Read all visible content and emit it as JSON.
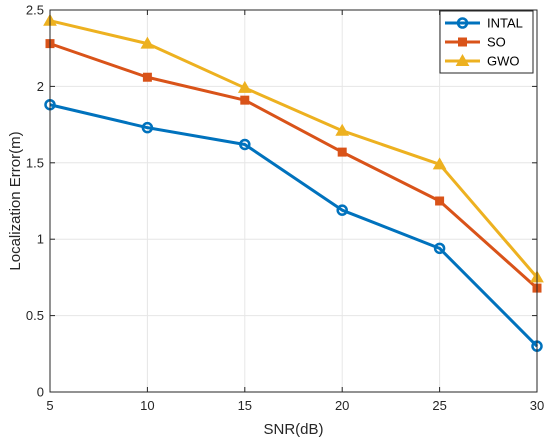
{
  "chart_data": {
    "type": "line",
    "x": [
      5,
      10,
      15,
      20,
      25,
      30
    ],
    "series": [
      {
        "name": "INTAL",
        "values": [
          1.88,
          1.73,
          1.62,
          1.19,
          0.94,
          0.3
        ],
        "color": "#0072BD",
        "marker": "circle"
      },
      {
        "name": "SO",
        "values": [
          2.28,
          2.06,
          1.91,
          1.57,
          1.25,
          0.68
        ],
        "color": "#D95319",
        "marker": "square"
      },
      {
        "name": "GWO",
        "values": [
          2.43,
          2.28,
          1.99,
          1.71,
          1.49,
          0.75
        ],
        "color": "#EDB120",
        "marker": "triangle"
      }
    ],
    "xlabel": "SNR(dB)",
    "ylabel": "Localization Error(m)",
    "xlim": [
      5,
      30
    ],
    "ylim": [
      0,
      2.5
    ],
    "xticks": [
      "5",
      "10",
      "15",
      "20",
      "25",
      "30"
    ],
    "yticks": [
      "0",
      "0.5",
      "1",
      "1.5",
      "2",
      "2.5"
    ],
    "grid": true,
    "legend_position": "top-right"
  }
}
